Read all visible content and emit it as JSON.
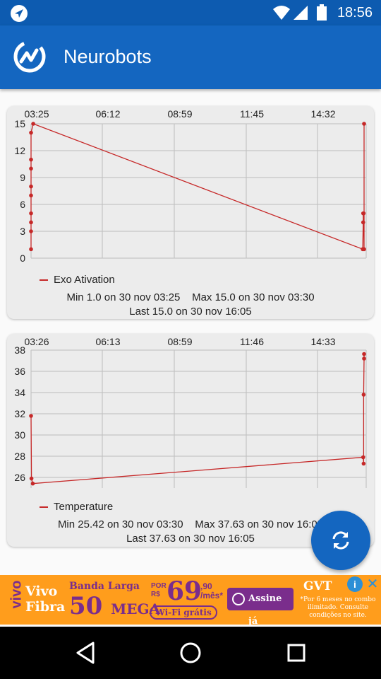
{
  "status_bar": {
    "time": "18:56",
    "icons": [
      "navigation-icon",
      "wifi-icon",
      "signal-icon",
      "battery-icon"
    ]
  },
  "app_bar": {
    "title": "Neurobots",
    "logo_icon": "neurobots-logo-icon"
  },
  "colors": {
    "primary": "#1466c0",
    "status_bar": "#0d5bb0",
    "series": "#c62828",
    "card": "#ececec",
    "ad_bg": "#ff9d1c",
    "ad_purple": "#7a2d8c"
  },
  "chart_data": [
    {
      "type": "line",
      "x_tick_labels": [
        "03:25",
        "06:12",
        "08:59",
        "11:45",
        "14:32"
      ],
      "x_range": [
        "03:25",
        "16:05"
      ],
      "ylim": [
        0,
        15
      ],
      "y_ticks": [
        0,
        3,
        6,
        9,
        12,
        15
      ],
      "grid": true,
      "legend_position": "bottom-left",
      "series": [
        {
          "name": "Exo Ativation",
          "points": [
            [
              "03:25",
              1.0
            ],
            [
              "03:25",
              3.0
            ],
            [
              "03:25",
              4.0
            ],
            [
              "03:25",
              5.0
            ],
            [
              "03:25",
              7.0
            ],
            [
              "03:25",
              8.0
            ],
            [
              "03:25",
              10.0
            ],
            [
              "03:25",
              11.0
            ],
            [
              "03:25",
              14.0
            ],
            [
              "03:30",
              15.0
            ],
            [
              "16:02",
              1.0
            ],
            [
              "16:03",
              4.0
            ],
            [
              "16:03",
              5.0
            ],
            [
              "16:04",
              5.0
            ],
            [
              "16:05",
              1.0
            ],
            [
              "16:05",
              15.0
            ]
          ]
        }
      ],
      "stats": {
        "min": "Min   1.0 on 30 nov 03:25",
        "max": "Max   15.0 on 30 nov 03:30",
        "last": "Last   15.0 on 30 nov 16:05"
      }
    },
    {
      "type": "line",
      "x_tick_labels": [
        "03:26",
        "06:13",
        "08:59",
        "11:46",
        "14:33"
      ],
      "x_range": [
        "03:26",
        "16:05"
      ],
      "ylim": [
        25,
        38
      ],
      "y_ticks": [
        26,
        28,
        30,
        32,
        34,
        36,
        38
      ],
      "grid": true,
      "legend_position": "bottom-left",
      "series": [
        {
          "name": "Temperature",
          "points": [
            [
              "03:26",
              31.8
            ],
            [
              "03:27",
              25.9
            ],
            [
              "03:30",
              25.42
            ],
            [
              "16:03",
              27.9
            ],
            [
              "16:04",
              27.3
            ],
            [
              "16:04",
              33.8
            ],
            [
              "16:05",
              37.2
            ],
            [
              "16:05",
              37.63
            ]
          ]
        }
      ],
      "stats": {
        "min": "Min   25.42 on 30 nov 03:30",
        "max": "Max   37.63 on 30 nov 16:05",
        "last": "Last   37.63 on 30 nov 16:05"
      }
    }
  ],
  "fab": {
    "icon": "refresh-icon"
  },
  "ad": {
    "brand": "vivo",
    "product_line1": "Vivo",
    "product_line2": "Fibra",
    "banda": "Banda Larga",
    "speed": "50",
    "speed_unit": "MEGA",
    "por": "POR",
    "currency": "R$",
    "price": "69",
    "cents": ",90",
    "per_month": "/mês*",
    "wifi": "Wi-Fi grátis",
    "cta": "Assine já",
    "partner": "GVT",
    "fine_print": "*Por 6 meses no combo ilimitado. Consulte condições no site.",
    "adchoices_label": "i",
    "close_label": "✕"
  },
  "nav_bar": {
    "icons": [
      "back-icon",
      "home-icon",
      "recents-icon"
    ]
  }
}
